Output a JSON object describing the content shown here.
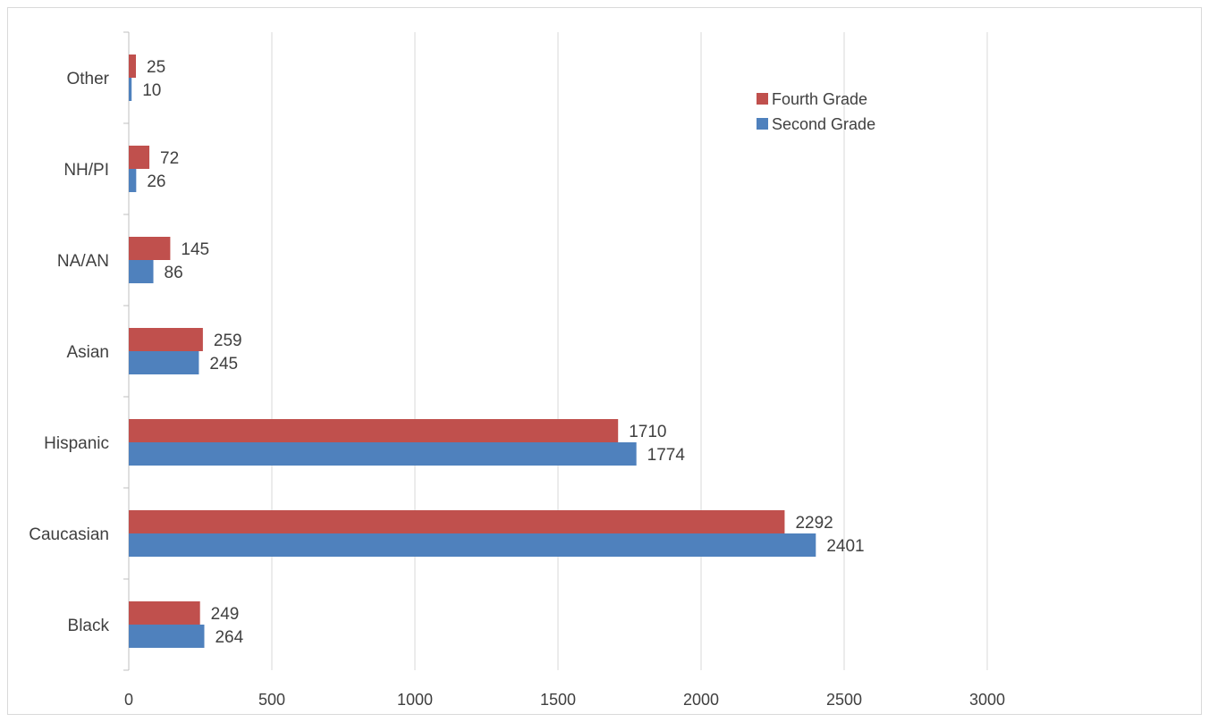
{
  "chart_data": {
    "type": "bar",
    "orientation": "horizontal",
    "categories": [
      "Black",
      "Caucasian",
      "Hispanic",
      "Asian",
      "NA/AN",
      "NH/PI",
      "Other"
    ],
    "series": [
      {
        "name": "Fourth Grade",
        "color": "#c0504d",
        "values": [
          249,
          2292,
          1710,
          259,
          145,
          72,
          25
        ]
      },
      {
        "name": "Second Grade",
        "color": "#4f81bd",
        "values": [
          264,
          2401,
          1774,
          245,
          86,
          26,
          10
        ]
      }
    ],
    "x_ticks": [
      "0",
      "500",
      "1000",
      "1500",
      "2000",
      "2500",
      "3000"
    ],
    "xlim": [
      0,
      3500
    ],
    "grid": true,
    "legend_position": "top-right",
    "data_labels": true,
    "colors": {
      "gridline": "#d9d9d9",
      "axis": "#bfbfbf",
      "text": "#404040"
    }
  }
}
